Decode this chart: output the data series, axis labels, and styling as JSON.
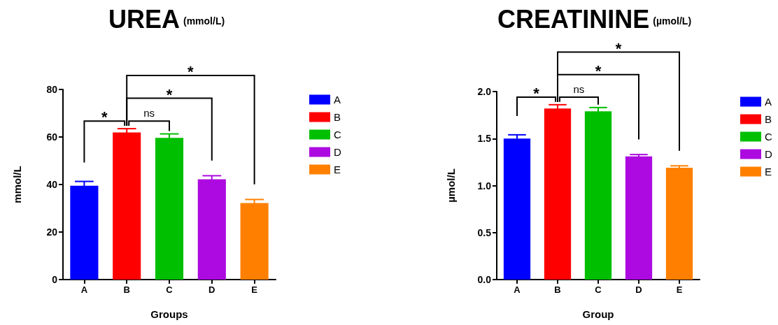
{
  "chart_data": [
    {
      "type": "bar",
      "title": "UREA",
      "subtitle": "(mmol/L)",
      "xlabel": "Groups",
      "ylabel": "mmol/L",
      "categories": [
        "A",
        "B",
        "C",
        "D",
        "E"
      ],
      "series": [
        {
          "name": "A",
          "color": "#0000ff",
          "values": [
            39.5,
            null,
            null,
            null,
            null
          ],
          "errors": [
            1.8,
            null,
            null,
            null,
            null
          ]
        },
        {
          "name": "B",
          "color": "#ff0000",
          "values": [
            null,
            61.9,
            null,
            null,
            null
          ],
          "errors": [
            null,
            1.6,
            null,
            null,
            null
          ]
        },
        {
          "name": "C",
          "color": "#00bf00",
          "values": [
            null,
            null,
            59.6,
            null,
            null
          ],
          "errors": [
            null,
            null,
            1.7,
            null,
            null
          ]
        },
        {
          "name": "D",
          "color": "#ac0ae0",
          "values": [
            null,
            null,
            null,
            42.2,
            null
          ],
          "errors": [
            null,
            null,
            null,
            1.5,
            null
          ]
        },
        {
          "name": "E",
          "color": "#ff8000",
          "values": [
            null,
            null,
            null,
            null,
            32.2
          ],
          "errors": [
            null,
            null,
            null,
            null,
            1.5
          ]
        }
      ],
      "ylim": [
        0,
        80
      ],
      "yticks": [
        0,
        20,
        40,
        60,
        80
      ],
      "grid": false,
      "legend": "right",
      "annotations": [
        "*",
        "ns",
        "*",
        "*"
      ]
    },
    {
      "type": "bar",
      "title": "CREATININE",
      "subtitle": "(µmol/L)",
      "xlabel": "Group",
      "ylabel": "µmol/L",
      "categories": [
        "A",
        "B",
        "C",
        "D",
        "E"
      ],
      "series": [
        {
          "name": "A",
          "color": "#0000ff",
          "values": [
            1.5,
            null,
            null,
            null,
            null
          ],
          "errors": [
            0.04,
            null,
            null,
            null,
            null
          ]
        },
        {
          "name": "B",
          "color": "#ff0000",
          "values": [
            null,
            1.82,
            null,
            null,
            null
          ],
          "errors": [
            null,
            0.04,
            null,
            null,
            null
          ]
        },
        {
          "name": "C",
          "color": "#00bf00",
          "values": [
            null,
            null,
            1.79,
            null,
            null
          ],
          "errors": [
            null,
            null,
            0.04,
            null,
            null
          ]
        },
        {
          "name": "D",
          "color": "#ac0ae0",
          "values": [
            null,
            null,
            null,
            1.31,
            null
          ],
          "errors": [
            null,
            null,
            null,
            0.02,
            null
          ]
        },
        {
          "name": "E",
          "color": "#ff8000",
          "values": [
            null,
            null,
            null,
            null,
            1.19
          ],
          "errors": [
            null,
            null,
            null,
            null,
            0.02
          ]
        }
      ],
      "ylim": [
        0,
        2
      ],
      "yticks": [
        {
          "value": 0,
          "label": "0.0"
        },
        {
          "value": 0.5,
          "label": "0.5"
        },
        {
          "value": 1,
          "label": "1.0"
        },
        {
          "value": 1.5,
          "label": "1.5"
        },
        {
          "value": 2,
          "label": "2.0"
        }
      ],
      "grid": false,
      "legend": "right",
      "annotations": [
        "*",
        "ns",
        "*",
        "*"
      ]
    }
  ]
}
